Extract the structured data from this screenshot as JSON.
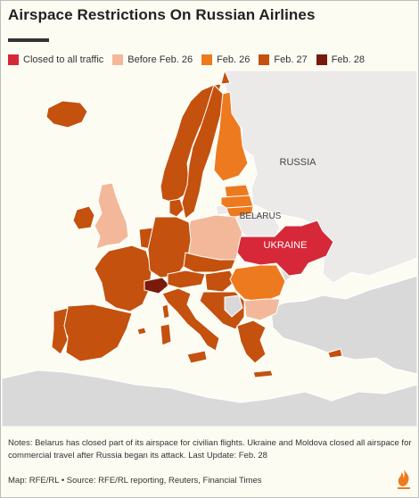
{
  "title": "Airspace Restrictions On Russian Airlines",
  "legend": [
    {
      "label": "Closed to all traffic",
      "color": "#d62839"
    },
    {
      "label": "Before Feb. 26",
      "color": "#f3b89a"
    },
    {
      "label": "Feb. 26",
      "color": "#ee7a1f"
    },
    {
      "label": "Feb. 27",
      "color": "#c4510e"
    },
    {
      "label": "Feb. 28",
      "color": "#7a1a0c"
    }
  ],
  "map": {
    "labels": {
      "russia": "RUSSIA",
      "belarus": "BELARUS",
      "ukraine": "UKRAINE"
    },
    "colors": {
      "sea": "#fdfcf3",
      "land_other": "#d9d9d9",
      "russia": "#ece9e9",
      "borders": "#ffffff"
    }
  },
  "notes": "Notes: Belarus has closed part of its airspace for civilian flights. Ukraine and Moldova closed all airspace for commercial travel after Russia began its attack. Last Update: Feb. 28",
  "credits": "Map: RFE/RL • Source: RFE/RL reporting, Reuters, Financial Times",
  "logo_icon": "rferl-flame-logo"
}
